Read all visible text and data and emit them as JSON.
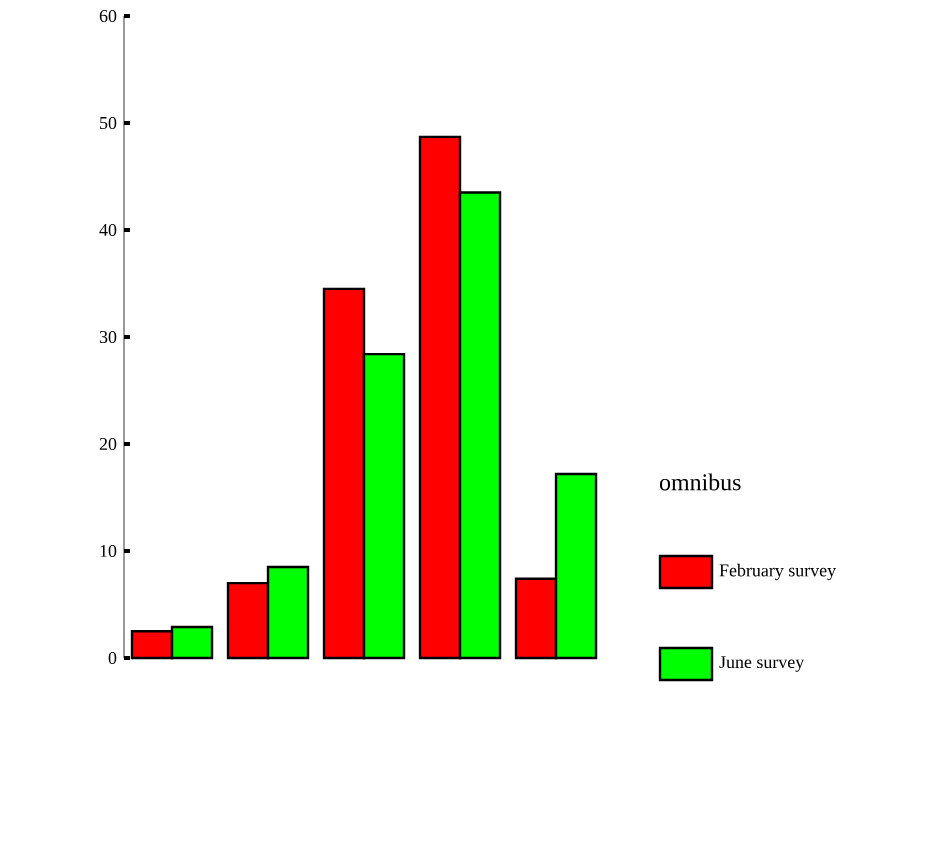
{
  "chart_data": {
    "type": "bar",
    "categories": [
      null,
      null,
      null,
      null,
      null
    ],
    "series": [
      {
        "name": "February survey",
        "color": "#ff0000",
        "values": [
          2.5,
          7.0,
          34.5,
          48.7,
          7.4
        ]
      },
      {
        "name": "June survey",
        "color": "#00ff00",
        "values": [
          2.9,
          8.5,
          28.4,
          43.5,
          17.2
        ]
      }
    ],
    "legend_title": "omnibus",
    "legend": "right",
    "ylim": [
      0,
      60
    ],
    "yticks": [
      0,
      10,
      20,
      30,
      40,
      50,
      60
    ],
    "grid": false
  }
}
